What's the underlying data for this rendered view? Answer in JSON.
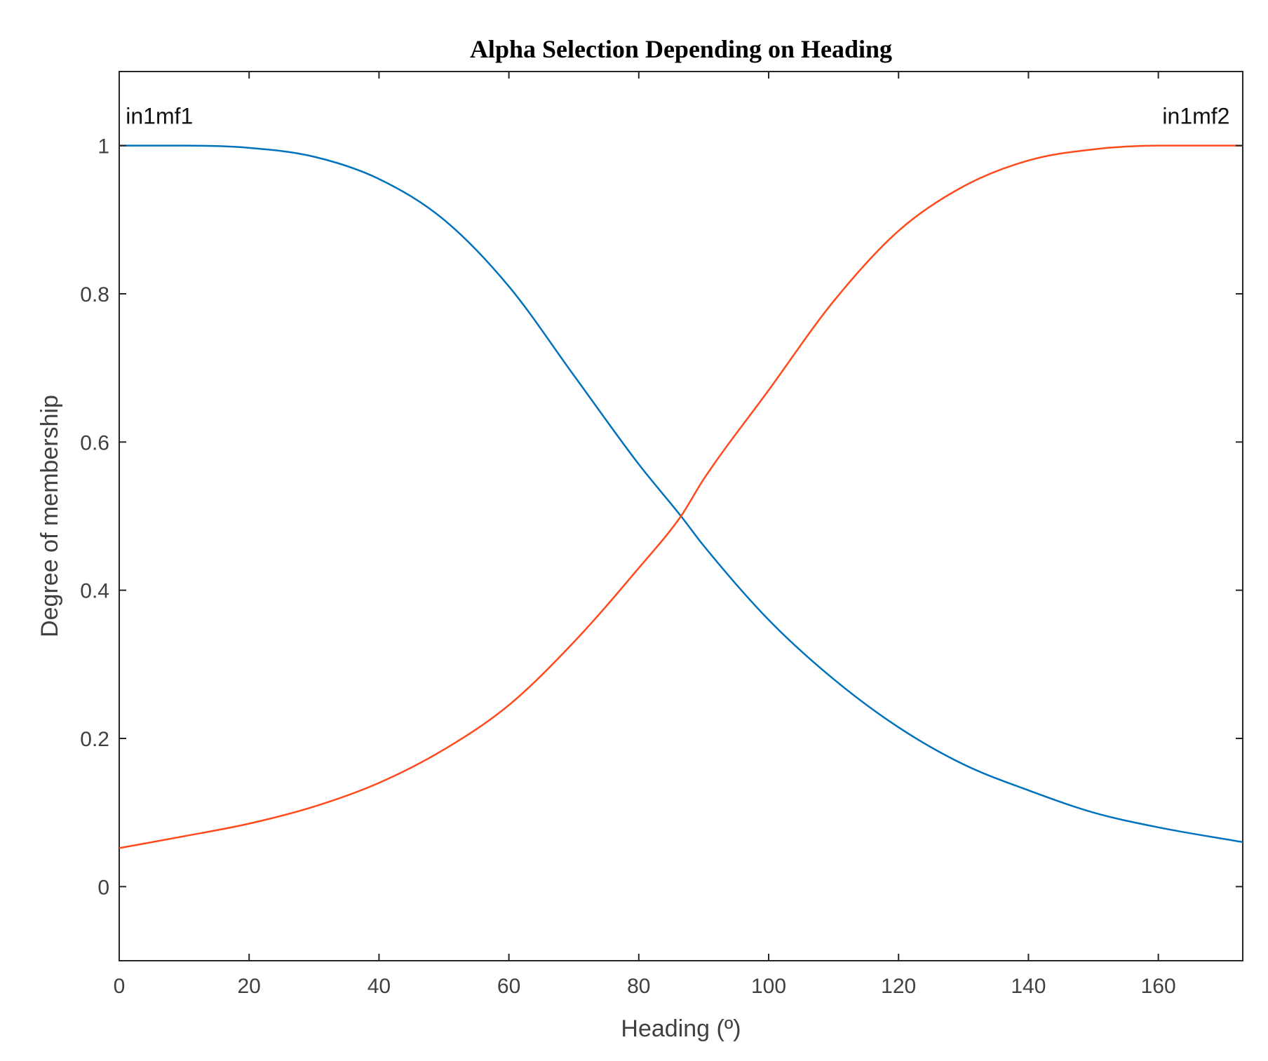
{
  "chart_data": {
    "type": "line",
    "title": "Alpha Selection Depending on Heading",
    "xlabel": "Heading (º)",
    "ylabel": "Degree of membership",
    "xlim": [
      0,
      173
    ],
    "ylim": [
      -0.1,
      1.1
    ],
    "xticks": [
      0,
      20,
      40,
      60,
      80,
      100,
      120,
      140,
      160
    ],
    "xtick_labels": [
      "0",
      "20",
      "40",
      "60",
      "80",
      "100",
      "120",
      "140",
      "160"
    ],
    "yticks": [
      0,
      0.2,
      0.4,
      0.6,
      0.8,
      1
    ],
    "ytick_labels": [
      "0",
      "0.2",
      "0.4",
      "0.6",
      "0.8",
      "1"
    ],
    "grid": false,
    "annotations": [
      {
        "text": "in1mf1",
        "x": 1,
        "y": 1.04,
        "anchor": "start"
      },
      {
        "text": "in1mf2",
        "x": 171,
        "y": 1.04,
        "anchor": "end"
      }
    ],
    "series": [
      {
        "color": "#0072BD",
        "x": [
          0,
          10,
          20,
          30,
          40,
          50,
          60,
          70,
          80,
          86.5,
          90,
          100,
          110,
          120,
          130,
          140,
          150,
          160,
          173
        ],
        "y": [
          1.0,
          1.0,
          0.997,
          0.985,
          0.955,
          0.9,
          0.81,
          0.69,
          0.57,
          0.5,
          0.46,
          0.36,
          0.28,
          0.215,
          0.165,
          0.13,
          0.1,
          0.08,
          0.06
        ]
      },
      {
        "color": "#FF4A1C",
        "x": [
          0,
          10,
          20,
          30,
          40,
          50,
          60,
          70,
          80,
          86.5,
          90,
          100,
          110,
          120,
          130,
          140,
          150,
          160,
          173
        ],
        "y": [
          0.052,
          0.068,
          0.085,
          0.108,
          0.14,
          0.185,
          0.245,
          0.33,
          0.43,
          0.5,
          0.55,
          0.67,
          0.79,
          0.885,
          0.945,
          0.98,
          0.995,
          1.0,
          1.0
        ]
      }
    ]
  }
}
